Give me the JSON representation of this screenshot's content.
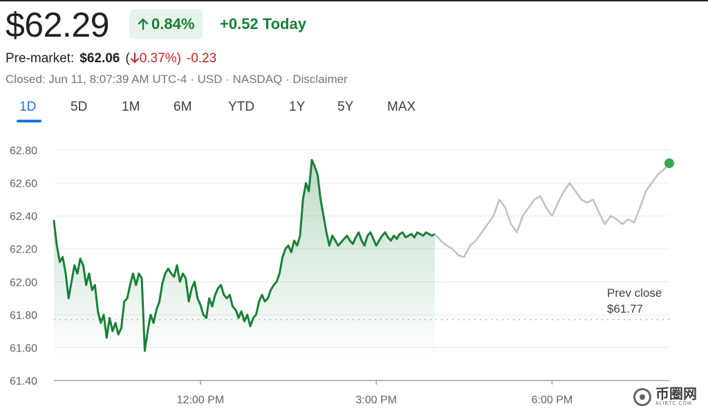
{
  "quote": {
    "price": "$62.29",
    "change_arrow_icon": "arrow-up-icon",
    "change_percent": "0.84%",
    "change_today": "+0.52 Today",
    "pre_market_label": "Pre-market:",
    "pre_market_price": "$62.06",
    "pre_market_pct_open": "(",
    "pre_market_arrow_icon": "arrow-down-icon",
    "pre_market_pct": "0.37%)",
    "pre_market_change": "-0.23",
    "meta": "Closed: Jun 11, 8:07:39 AM UTC-4 · USD · NASDAQ · Disclaimer",
    "colors": {
      "up": "#188038",
      "down": "#c5221f",
      "after_hours": "#bdc1c6",
      "accent": "#1a73e8"
    }
  },
  "tabs": [
    {
      "label": "1D",
      "active": true
    },
    {
      "label": "5D"
    },
    {
      "label": "1M"
    },
    {
      "label": "6M"
    },
    {
      "label": "YTD"
    },
    {
      "label": "1Y"
    },
    {
      "label": "5Y"
    },
    {
      "label": "MAX"
    }
  ],
  "watermark": {
    "text": "币圈网",
    "url": "ALIBTC.COM",
    "logo_icon": "logo-icon"
  },
  "chart_data": {
    "type": "line",
    "x_unit": "hour of day",
    "xlim": [
      9.5,
      20.0
    ],
    "ylim": [
      61.4,
      62.8
    ],
    "yticks": [
      61.4,
      61.6,
      61.8,
      62.0,
      62.2,
      62.4,
      62.6,
      62.8
    ],
    "ytick_labels": [
      "61.40",
      "61.60",
      "61.80",
      "62.00",
      "62.20",
      "62.40",
      "62.60",
      "62.80"
    ],
    "xticks": [
      12,
      15,
      18
    ],
    "xtick_labels": [
      "12:00 PM",
      "3:00 PM",
      "6:00 PM"
    ],
    "grid": true,
    "prev_close": {
      "label": "Prev close",
      "value_label": "$61.77",
      "value": 61.77
    },
    "series": [
      {
        "session": "regular",
        "x": [
          9.5,
          9.55,
          9.6,
          9.65,
          9.7,
          9.75,
          9.8,
          9.85,
          9.9,
          9.95,
          10.0,
          10.05,
          10.1,
          10.15,
          10.2,
          10.25,
          10.3,
          10.35,
          10.4,
          10.45,
          10.5,
          10.55,
          10.6,
          10.65,
          10.7,
          10.75,
          10.8,
          10.85,
          10.9,
          10.95,
          11.0,
          11.05,
          11.1,
          11.15,
          11.2,
          11.25,
          11.3,
          11.35,
          11.4,
          11.45,
          11.5,
          11.55,
          11.6,
          11.65,
          11.7,
          11.75,
          11.8,
          11.85,
          11.9,
          11.95,
          12.0,
          12.05,
          12.1,
          12.15,
          12.2,
          12.25,
          12.3,
          12.35,
          12.4,
          12.45,
          12.5,
          12.55,
          12.6,
          12.65,
          12.7,
          12.75,
          12.8,
          12.85,
          12.9,
          12.95,
          13.0,
          13.05,
          13.1,
          13.15,
          13.2,
          13.25,
          13.3,
          13.35,
          13.4,
          13.45,
          13.5,
          13.55,
          13.6,
          13.65,
          13.7,
          13.75,
          13.8,
          13.85,
          13.9,
          13.95,
          14.0,
          14.05,
          14.1,
          14.15,
          14.2,
          14.25,
          14.3,
          14.35,
          14.4,
          14.45,
          14.5,
          14.55,
          14.6,
          14.65,
          14.7,
          14.75,
          14.8,
          14.85,
          14.9,
          14.95,
          15.0,
          15.05,
          15.1,
          15.15,
          15.2,
          15.25,
          15.3,
          15.35,
          15.4,
          15.45,
          15.5,
          15.55,
          15.6,
          15.65,
          15.7,
          15.75,
          15.8,
          15.85,
          15.9,
          15.95,
          16.0
        ],
        "y": [
          62.37,
          62.22,
          62.12,
          62.15,
          62.05,
          61.9,
          62.0,
          62.1,
          62.05,
          62.14,
          62.1,
          61.98,
          62.05,
          61.95,
          61.98,
          61.82,
          61.75,
          61.8,
          61.66,
          61.78,
          61.7,
          61.75,
          61.68,
          61.72,
          61.88,
          61.9,
          61.98,
          62.05,
          61.98,
          62.05,
          62.02,
          61.58,
          61.7,
          61.8,
          61.75,
          61.83,
          61.88,
          61.99,
          62.05,
          62.08,
          62.05,
          62.03,
          62.1,
          62.0,
          62.05,
          62.02,
          61.88,
          61.96,
          62.0,
          61.9,
          61.86,
          61.8,
          61.78,
          61.9,
          61.85,
          61.92,
          61.96,
          61.98,
          61.92,
          61.9,
          61.92,
          61.85,
          61.83,
          61.78,
          61.82,
          61.76,
          61.8,
          61.73,
          61.78,
          61.8,
          61.88,
          61.92,
          61.88,
          61.9,
          61.95,
          61.98,
          62.0,
          62.05,
          62.15,
          62.2,
          62.22,
          62.18,
          62.25,
          62.22,
          62.28,
          62.5,
          62.6,
          62.55,
          62.74,
          62.7,
          62.65,
          62.5,
          62.4,
          62.3,
          62.22,
          62.28,
          62.25,
          62.22,
          62.24,
          62.26,
          62.28,
          62.25,
          62.23,
          62.27,
          62.3,
          62.25,
          62.22,
          62.28,
          62.3,
          62.26,
          62.22,
          62.25,
          62.28,
          62.3,
          62.27,
          62.25,
          62.28,
          62.26,
          62.29,
          62.3,
          62.27,
          62.28,
          62.29,
          62.27,
          62.3,
          62.29,
          62.28,
          62.3,
          62.29,
          62.28,
          62.29
        ]
      },
      {
        "session": "after-hours",
        "x": [
          16.0,
          16.1,
          16.2,
          16.3,
          16.4,
          16.5,
          16.6,
          16.7,
          16.8,
          16.9,
          17.0,
          17.1,
          17.2,
          17.3,
          17.4,
          17.5,
          17.6,
          17.7,
          17.8,
          17.9,
          18.0,
          18.1,
          18.2,
          18.3,
          18.4,
          18.5,
          18.6,
          18.7,
          18.8,
          18.9,
          19.0,
          19.1,
          19.2,
          19.3,
          19.4,
          19.5,
          19.6,
          19.7,
          19.8,
          19.9,
          20.0
        ],
        "y": [
          62.29,
          62.25,
          62.22,
          62.2,
          62.16,
          62.15,
          62.22,
          62.25,
          62.3,
          62.35,
          62.4,
          62.5,
          62.45,
          62.35,
          62.3,
          62.4,
          62.45,
          62.5,
          62.52,
          62.45,
          62.4,
          62.48,
          62.55,
          62.6,
          62.55,
          62.5,
          62.48,
          62.5,
          62.42,
          62.35,
          62.4,
          62.38,
          62.35,
          62.38,
          62.36,
          62.45,
          62.55,
          62.6,
          62.65,
          62.68,
          62.72
        ]
      }
    ]
  }
}
